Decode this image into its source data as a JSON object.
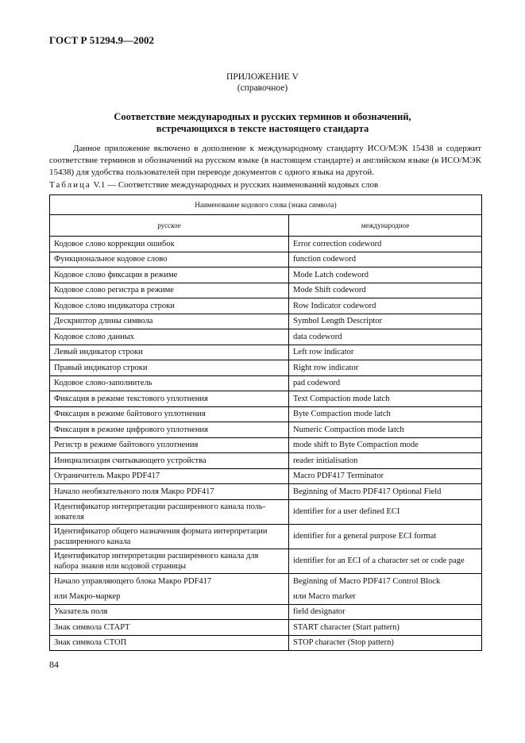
{
  "header": "ГОСТ Р 51294.9—2002",
  "appendix": {
    "title": "ПРИЛОЖЕНИЕ V",
    "subtitle": "(справочное)"
  },
  "title_lines": [
    "Соответствие международных и русских терминов и обозначений,",
    "встречающихся в тексте настоящего стандарта"
  ],
  "paragraph": "Данное приложение включено в дополнение к международному стандарту ИСО/МЭК 15438 и содержит соответствие терминов и обозначений на русском языке (в настоящем стандарте) и английском языке (в ИСО/МЭК 15438) для удобства пользователей при переводе документов с одного языка на другой.",
  "caption": {
    "prefix": "Таблица",
    "text": " V.1 — Соответствие международных и русских наименований кодовых слов"
  },
  "table": {
    "group_header": "Наименование кодового слова (знака символа)",
    "columns": [
      "русское",
      "международное"
    ],
    "rows": [
      [
        "Кодовое слово коррекции ошибок",
        "Error correction codeword"
      ],
      [
        "Функциональное кодовое слово",
        "function codeword"
      ],
      [
        "Кодовое слово фиксации в режиме",
        "Mode Latch codeword"
      ],
      [
        "Кодовое слово регистра в режиме",
        "Mode Shift codeword"
      ],
      [
        "Кодовое слово индикатора строки",
        "Row Indicator codeword"
      ],
      [
        "Дескриптор длины символа",
        "Symbol Length Descriptor"
      ],
      [
        "Кодовое слово данных",
        "data codeword"
      ],
      [
        "Левый индикатор строки",
        "Left row indicator"
      ],
      [
        "Правый индикатор строки",
        "Right row indicator"
      ],
      [
        "Кодовое слово-заполнитель",
        "pad codeword"
      ],
      [
        "Фиксация в режиме текстового уплотнения",
        "Text Compaction mode latch"
      ],
      [
        "Фиксация в режиме байтового уплотнения",
        "Byte Compaction mode latch"
      ],
      [
        "Фиксация в режиме цифрового уплотнения",
        "Numeric Compaction mode latch"
      ],
      [
        "Регистр в режиме байтового уплотнения",
        "mode shift to Byte Compaction mode"
      ],
      [
        "Инициализация считывающего устройства",
        "reader initialisation"
      ],
      [
        "Ограничитель Макро PDF417",
        "Macro PDF417 Terminator"
      ],
      [
        "Начало необязательного поля Макро PDF417",
        "Beginning of Macro PDF417 Optional Field"
      ],
      [
        "Идентификатор интерпретации расширенного канала поль-зователя",
        "identifier for a user defined ECI"
      ],
      [
        "Идентификатор общего назначения формата интерпретации расширенного канала",
        "identifier for a general purpose ECI format"
      ],
      [
        "Идентификатор интерпретации расширенного канала для набора знаков или кодовой страницы",
        "identifier for an ECI of a character set or code page"
      ]
    ],
    "block_row": {
      "ru": [
        "Начало управляющего блока Макро PDF417",
        "или Макро-маркер"
      ],
      "en": [
        "Beginning of Macro PDF417 Control Block",
        "или Macro marker"
      ]
    },
    "tail_rows": [
      [
        "Указатель поля",
        "field designator"
      ],
      [
        "Знак символа СТАРТ",
        "START character (Start pattern)"
      ],
      [
        "Знак символа СТОП",
        "STOP character (Stop pattern)"
      ]
    ]
  },
  "page_number": "84"
}
